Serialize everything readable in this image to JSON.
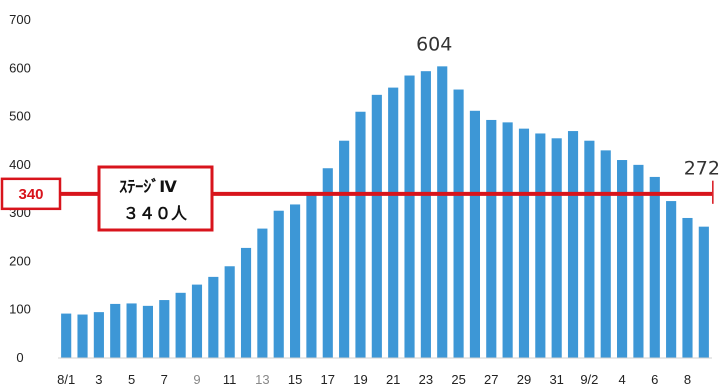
{
  "chart_data": {
    "type": "bar",
    "categories": [
      "8/1",
      "2",
      "3",
      "4",
      "5",
      "6",
      "7",
      "8",
      "9",
      "10",
      "11",
      "12",
      "13",
      "14",
      "15",
      "16",
      "17",
      "18",
      "19",
      "20",
      "21",
      "22",
      "23",
      "24",
      "25",
      "26",
      "27",
      "28",
      "29",
      "30",
      "31",
      "9/1",
      "9/2",
      "3",
      "4",
      "5",
      "6",
      "7",
      "8",
      "9"
    ],
    "values": [
      92,
      90,
      95,
      112,
      113,
      108,
      120,
      135,
      152,
      168,
      190,
      228,
      268,
      305,
      318,
      338,
      393,
      450,
      510,
      545,
      560,
      585,
      594,
      604,
      556,
      512,
      493,
      488,
      475,
      465,
      455,
      470,
      450,
      430,
      410,
      400,
      375,
      325,
      290,
      272
    ],
    "x_tick_labels": [
      "8/1",
      "3",
      "5",
      "7",
      "9",
      "11",
      "13",
      "15",
      "17",
      "19",
      "21",
      "23",
      "25",
      "27",
      "29",
      "31",
      "9/2",
      "4",
      "6",
      "8"
    ],
    "y_ticks": [
      "0",
      "100",
      "200",
      "300",
      "400",
      "500",
      "600",
      "700"
    ],
    "ylim": [
      0,
      700
    ],
    "data_labels": {
      "peak": "604",
      "last": "272"
    },
    "reference_line": {
      "value": 340,
      "label": "340",
      "box_line1": "ｽﾃｰｼﾞⅣ",
      "box_line2": "３４０人"
    },
    "colors": {
      "bar": "#3d97d6",
      "reference": "#d8141c"
    },
    "grid": false,
    "legend": "none"
  }
}
